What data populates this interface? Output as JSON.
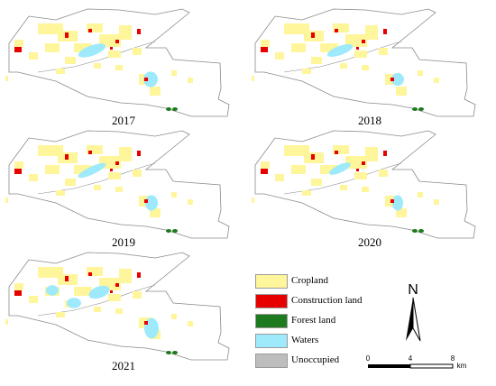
{
  "colors": {
    "cropland": "#fff59b",
    "construction": "#e60000",
    "forest": "#1e7a1e",
    "waters": "#9eeafc",
    "unoccupied": "#bdbdbd",
    "boundary": "#8a8a8a"
  },
  "panels": [
    {
      "year": "2017"
    },
    {
      "year": "2018"
    },
    {
      "year": "2019"
    },
    {
      "year": "2020"
    },
    {
      "year": "2021"
    }
  ],
  "legend": [
    {
      "label": "Cropland",
      "color": "#fff59b"
    },
    {
      "label": "Construction land",
      "color": "#e60000"
    },
    {
      "label": "Forest land",
      "color": "#1e7a1e"
    },
    {
      "label": "Waters",
      "color": "#9eeafc"
    },
    {
      "label": "Unoccupied",
      "color": "#bdbdbd"
    }
  ],
  "north_label": "N",
  "scale": {
    "ticks": [
      "0",
      "4",
      "8"
    ],
    "unit": "km"
  }
}
